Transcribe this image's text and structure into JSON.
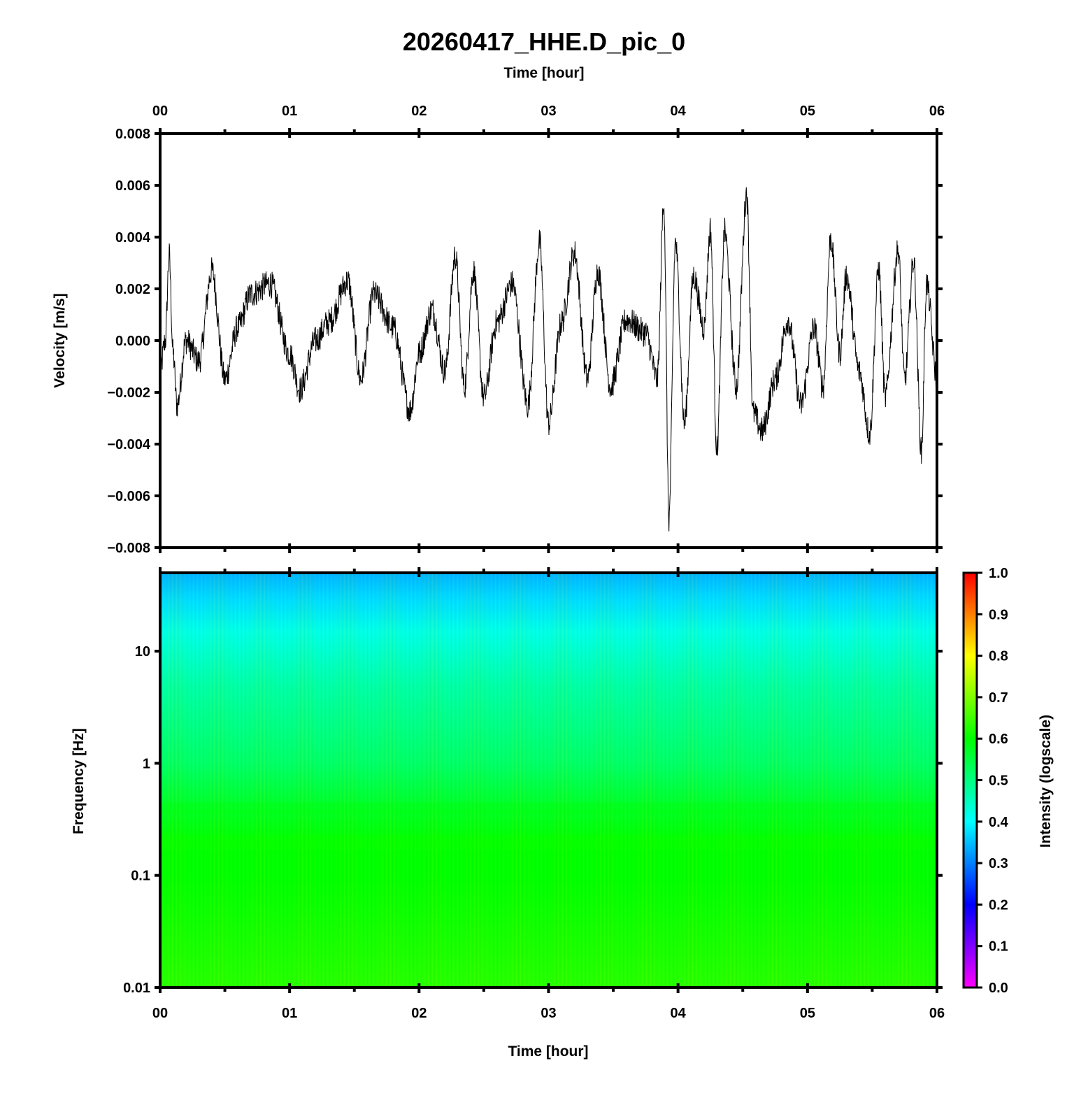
{
  "title": "20260417_HHE.D_pic_0",
  "top_axis_label": "Time [hour]",
  "bottom_axis_label": "Time [hour]",
  "colors": {
    "trace": "#000000",
    "frame": "#000000",
    "background": "#ffffff",
    "colormap": [
      "#ff00ff",
      "#0000ff",
      "#00ffff",
      "#00ff00",
      "#ffff00",
      "#ff0000"
    ]
  },
  "chart_data": [
    {
      "type": "line",
      "panel": "waveform",
      "xlabel": "Time [hour]",
      "ylabel": "Velocity [m/s]",
      "xlim": [
        0,
        6
      ],
      "ylim": [
        -0.008,
        0.008
      ],
      "x_tick_labels": [
        "00",
        "01",
        "02",
        "03",
        "04",
        "05",
        "06"
      ],
      "y_ticks": [
        -0.008,
        -0.006,
        -0.004,
        -0.002,
        0.0,
        0.002,
        0.004,
        0.006,
        0.008
      ],
      "y_tick_labels": [
        "−0.008",
        "−0.006",
        "−0.004",
        "−0.002",
        "0.000",
        "0.002",
        "0.004",
        "0.006",
        "0.008"
      ],
      "grid": false,
      "key_points": [
        [
          0.0,
          -0.0012
        ],
        [
          0.04,
          0.0
        ],
        [
          0.07,
          0.0033
        ],
        [
          0.1,
          -0.0005
        ],
        [
          0.13,
          -0.0025
        ],
        [
          0.2,
          0.0
        ],
        [
          0.3,
          -0.0008
        ],
        [
          0.4,
          0.0027
        ],
        [
          0.5,
          -0.0015
        ],
        [
          0.6,
          0.0005
        ],
        [
          0.7,
          0.0018
        ],
        [
          0.85,
          0.0022
        ],
        [
          1.0,
          -0.0005
        ],
        [
          1.08,
          -0.0019
        ],
        [
          1.2,
          0.0
        ],
        [
          1.3,
          0.0007
        ],
        [
          1.45,
          0.0023
        ],
        [
          1.55,
          -0.0015
        ],
        [
          1.65,
          0.0018
        ],
        [
          1.8,
          0.0005
        ],
        [
          1.93,
          -0.0027
        ],
        [
          2.0,
          -0.0005
        ],
        [
          2.1,
          0.0012
        ],
        [
          2.2,
          -0.0012
        ],
        [
          2.28,
          0.0033
        ],
        [
          2.35,
          -0.0018
        ],
        [
          2.42,
          0.0027
        ],
        [
          2.5,
          -0.0022
        ],
        [
          2.6,
          0.0007
        ],
        [
          2.72,
          0.0022
        ],
        [
          2.84,
          -0.0025
        ],
        [
          2.93,
          0.0038
        ],
        [
          3.0,
          -0.0032
        ],
        [
          3.1,
          0.0007
        ],
        [
          3.2,
          0.0034
        ],
        [
          3.3,
          -0.0015
        ],
        [
          3.38,
          0.0027
        ],
        [
          3.48,
          -0.0018
        ],
        [
          3.6,
          0.0008
        ],
        [
          3.75,
          0.0003
        ],
        [
          3.84,
          -0.0015
        ],
        [
          3.89,
          0.0054
        ],
        [
          3.93,
          -0.0069
        ],
        [
          3.98,
          0.0038
        ],
        [
          4.05,
          -0.0032
        ],
        [
          4.12,
          0.0025
        ],
        [
          4.2,
          0.0005
        ],
        [
          4.25,
          0.0043
        ],
        [
          4.3,
          -0.0042
        ],
        [
          4.36,
          0.0042
        ],
        [
          4.45,
          -0.0018
        ],
        [
          4.53,
          0.0057
        ],
        [
          4.58,
          -0.0028
        ],
        [
          4.65,
          -0.0035
        ],
        [
          4.75,
          -0.0015
        ],
        [
          4.85,
          0.0008
        ],
        [
          4.95,
          -0.0025
        ],
        [
          5.05,
          0.0005
        ],
        [
          5.12,
          -0.0018
        ],
        [
          5.18,
          0.004
        ],
        [
          5.25,
          -0.0005
        ],
        [
          5.3,
          0.0025
        ],
        [
          5.4,
          -0.0012
        ],
        [
          5.48,
          -0.0036
        ],
        [
          5.55,
          0.0028
        ],
        [
          5.6,
          -0.0022
        ],
        [
          5.7,
          0.0035
        ],
        [
          5.75,
          -0.0015
        ],
        [
          5.82,
          0.0031
        ],
        [
          5.88,
          -0.0043
        ],
        [
          5.92,
          0.0022
        ],
        [
          6.0,
          -0.0015
        ]
      ],
      "annotations": []
    },
    {
      "type": "heatmap",
      "panel": "spectrogram",
      "xlabel": "Time [hour]",
      "ylabel": "Frequency [Hz]",
      "xlim": [
        0,
        6
      ],
      "ylim": [
        0.01,
        50
      ],
      "y_scale": "log",
      "x_tick_labels": [
        "00",
        "01",
        "02",
        "03",
        "04",
        "05",
        "06"
      ],
      "y_ticks": [
        0.01,
        0.1,
        1,
        10
      ],
      "y_tick_labels": [
        "0.01",
        "0.1",
        "1",
        "10"
      ],
      "intensity_profile": [
        {
          "frequency": 50,
          "intensity": 0.34
        },
        {
          "frequency": 30,
          "intensity": 0.37
        },
        {
          "frequency": 15,
          "intensity": 0.42
        },
        {
          "frequency": 5,
          "intensity": 0.47
        },
        {
          "frequency": 1,
          "intensity": 0.52
        },
        {
          "frequency": 0.4,
          "intensity": 0.57
        },
        {
          "frequency": 0.2,
          "intensity": 0.6
        },
        {
          "frequency": 0.1,
          "intensity": 0.6
        },
        {
          "frequency": 0.01,
          "intensity": 0.63
        }
      ],
      "colorbar": {
        "label": "Intensity (logscale)",
        "range": [
          0.0,
          1.0
        ],
        "tick_labels": [
          "0.0",
          "0.1",
          "0.2",
          "0.3",
          "0.4",
          "0.5",
          "0.6",
          "0.7",
          "0.8",
          "0.9",
          "1.0"
        ]
      }
    }
  ]
}
